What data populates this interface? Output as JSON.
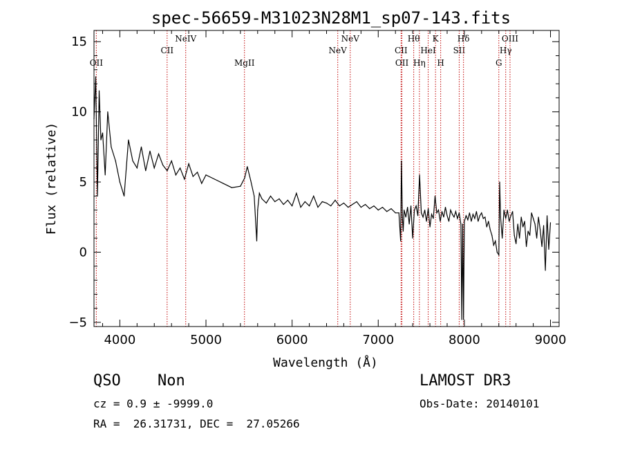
{
  "chart_data": {
    "type": "line",
    "title": "spec-56659-M31023N28M1_sp07-143.fits",
    "xlabel": "Wavelength (Å)",
    "ylabel": "Flux (relative)",
    "xlim": [
      3700,
      9100
    ],
    "ylim": [
      -5.3,
      15.8
    ],
    "xticks": [
      4000,
      5000,
      6000,
      7000,
      8000,
      9000
    ],
    "yticks": [
      -5,
      0,
      5,
      10,
      15
    ],
    "grid": false,
    "series": [
      {
        "x": [
          3700,
          3720,
          3740,
          3760,
          3780,
          3800,
          3830,
          3860,
          3900,
          3950,
          4000,
          4050,
          4100,
          4150,
          4200,
          4250,
          4300,
          4350,
          4400,
          4450,
          4500,
          4550,
          4600,
          4650,
          4700,
          4750,
          4800,
          4850,
          4900,
          4950,
          5000,
          5100,
          5200,
          5300,
          5400,
          5450,
          5480,
          5520,
          5560,
          5590,
          5600,
          5620,
          5650,
          5700,
          5750,
          5800,
          5850,
          5900,
          5950,
          6000,
          6050,
          6100,
          6150,
          6200,
          6250,
          6300,
          6350,
          6400,
          6450,
          6500,
          6550,
          6600,
          6650,
          6700,
          6750,
          6800,
          6850,
          6900,
          6950,
          7000,
          7050,
          7100,
          7150,
          7200,
          7240,
          7260,
          7270,
          7280,
          7290,
          7300,
          7320,
          7340,
          7360,
          7380,
          7400,
          7420,
          7440,
          7460,
          7480,
          7500,
          7520,
          7540,
          7560,
          7580,
          7600,
          7620,
          7640,
          7660,
          7680,
          7700,
          7720,
          7740,
          7760,
          7780,
          7800,
          7820,
          7840,
          7860,
          7880,
          7900,
          7920,
          7940,
          7960,
          7970,
          7980,
          7990,
          8000,
          8020,
          8040,
          8060,
          8080,
          8100,
          8120,
          8140,
          8160,
          8180,
          8200,
          8220,
          8240,
          8260,
          8280,
          8300,
          8320,
          8340,
          8360,
          8380,
          8400,
          8410,
          8420,
          8440,
          8460,
          8480,
          8500,
          8520,
          8540,
          8560,
          8580,
          8600,
          8620,
          8640,
          8660,
          8680,
          8700,
          8720,
          8740,
          8760,
          8780,
          8800,
          8820,
          8840,
          8860,
          8880,
          8900,
          8920,
          8940,
          8960,
          8980,
          9000
        ],
        "y": [
          9.5,
          12.5,
          4.0,
          11.5,
          8.0,
          8.5,
          5.5,
          10.0,
          7.5,
          6.5,
          5.0,
          4.0,
          8.0,
          6.5,
          6.0,
          7.5,
          5.8,
          7.2,
          6.0,
          7.0,
          6.2,
          5.8,
          6.5,
          5.5,
          6.0,
          5.2,
          6.3,
          5.4,
          5.7,
          4.9,
          5.5,
          5.2,
          4.9,
          4.6,
          4.7,
          5.3,
          6.1,
          5.1,
          4.0,
          0.8,
          3.0,
          4.2,
          3.8,
          3.5,
          4.0,
          3.6,
          3.8,
          3.4,
          3.7,
          3.3,
          4.2,
          3.2,
          3.6,
          3.3,
          4.0,
          3.2,
          3.6,
          3.5,
          3.3,
          3.7,
          3.3,
          3.5,
          3.2,
          3.4,
          3.6,
          3.2,
          3.4,
          3.1,
          3.3,
          3.0,
          3.2,
          2.9,
          3.1,
          2.8,
          2.8,
          0.8,
          6.5,
          2.5,
          1.5,
          3.0,
          2.5,
          3.2,
          2.0,
          3.3,
          1.0,
          3.0,
          3.3,
          2.6,
          5.5,
          2.8,
          2.5,
          3.0,
          2.2,
          3.1,
          1.8,
          2.7,
          2.4,
          4.0,
          2.8,
          3.0,
          2.2,
          2.9,
          2.5,
          3.2,
          2.6,
          2.2,
          3.0,
          2.7,
          2.5,
          2.9,
          2.4,
          2.8,
          2.0,
          -4.8,
          2.0,
          -4.8,
          2.2,
          2.6,
          2.3,
          2.8,
          2.2,
          2.7,
          2.4,
          2.9,
          2.2,
          2.6,
          2.8,
          2.4,
          2.5,
          1.8,
          2.2,
          1.6,
          1.2,
          0.5,
          0.8,
          0.0,
          -0.2,
          5.0,
          2.5,
          1.0,
          3.0,
          2.4,
          3.0,
          2.2,
          2.6,
          2.9,
          1.2,
          0.6,
          2.0,
          1.0,
          2.5,
          1.8,
          2.2,
          0.4,
          1.5,
          1.2,
          2.8,
          2.4,
          2.0,
          1.0,
          2.5,
          1.6,
          0.4,
          1.9,
          -1.3,
          2.6,
          0.2,
          2.1
        ]
      }
    ],
    "lines": [
      {
        "wl": 3727,
        "label": "OII",
        "row": 3
      },
      {
        "wl": 4549,
        "label": "CII",
        "row": 2
      },
      {
        "wl": 4765,
        "label": "NeIV",
        "row": 1
      },
      {
        "wl": 5447,
        "label": "MgII",
        "row": 3
      },
      {
        "wl": 6530,
        "label": "NeV",
        "row": 2
      },
      {
        "wl": 6675,
        "label": "NeV",
        "row": 1
      },
      {
        "wl": 7265,
        "label": "CII",
        "row": 2
      },
      {
        "wl": 7275,
        "label": "OII",
        "row": 3
      },
      {
        "wl": 7412,
        "label": "Hθ",
        "row": 1
      },
      {
        "wl": 7478,
        "label": "Hη",
        "row": 3
      },
      {
        "wl": 7580,
        "label": "HeI",
        "row": 2
      },
      {
        "wl": 7665,
        "label": "K",
        "row": 1
      },
      {
        "wl": 7725,
        "label": "H",
        "row": 3
      },
      {
        "wl": 7940,
        "label": "SII",
        "row": 2
      },
      {
        "wl": 7990,
        "label": "Hδ",
        "row": 1
      },
      {
        "wl": 8400,
        "label": "G",
        "row": 3
      },
      {
        "wl": 8480,
        "label": "Hγ",
        "row": 2
      },
      {
        "wl": 8530,
        "label": "OIII",
        "row": 1
      }
    ]
  },
  "footer": {
    "class_label": "QSO",
    "subclass_label": "Non",
    "survey": "LAMOST DR3",
    "redshift_line": "cz = 0.9 ± -9999.0",
    "obs_date": "Obs-Date: 20140101",
    "coords": "RA =  26.31731, DEC =  27.05266"
  }
}
